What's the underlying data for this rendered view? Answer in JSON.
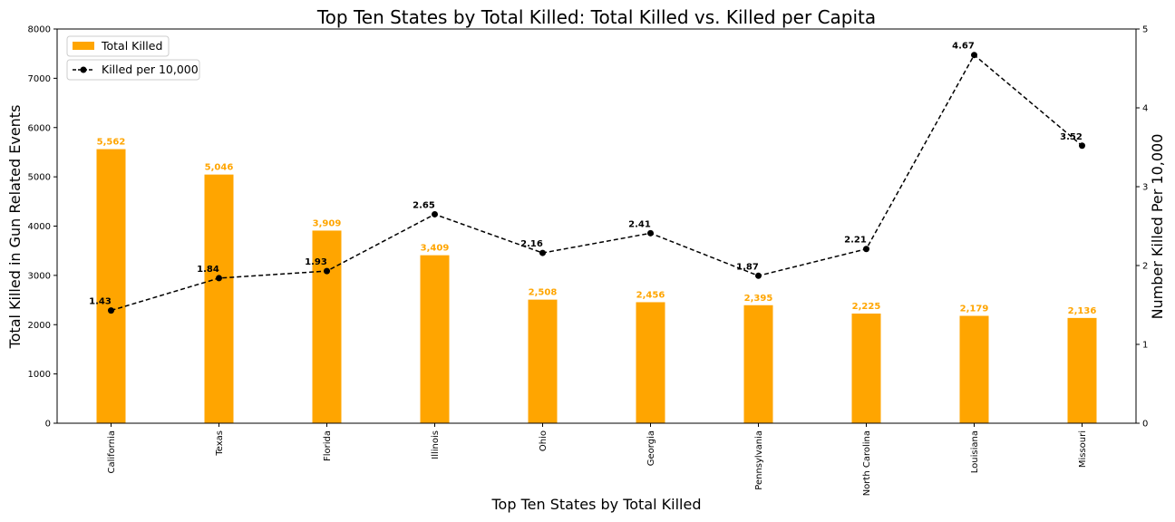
{
  "chart_data": {
    "type": "bar",
    "title": "Top Ten States by Total Killed: Total Killed vs. Killed per Capita",
    "xlabel": "Top Ten States by Total Killed",
    "ylabel": "Total Killed in Gun Related Events",
    "y2label": "Number Killed Per 10,000",
    "categories": [
      "California",
      "Texas",
      "Florida",
      "Illinois",
      "Ohio",
      "Georgia",
      "Pennsylvania",
      "North Carolina",
      "Louisiana",
      "Missouri"
    ],
    "series": [
      {
        "name": "Total Killed",
        "type": "bar",
        "axis": "left",
        "values": [
          5562,
          5046,
          3909,
          3409,
          2508,
          2456,
          2395,
          2225,
          2179,
          2136
        ],
        "labels": [
          "5,562",
          "5,046",
          "3,909",
          "3,409",
          "2,508",
          "2,456",
          "2,395",
          "2,225",
          "2,179",
          "2,136"
        ],
        "color": "#ffa500"
      },
      {
        "name": "Killed per 10,000",
        "type": "line",
        "axis": "right",
        "values": [
          1.43,
          1.84,
          1.93,
          2.65,
          2.16,
          2.41,
          1.87,
          2.21,
          4.67,
          3.52
        ],
        "labels": [
          "1.43",
          "1.84",
          "1.93",
          "2.65",
          "2.16",
          "2.41",
          "1.87",
          "2.21",
          "4.67",
          "3.52"
        ],
        "color": "#000000",
        "linestyle": "dashed",
        "marker": "circle"
      }
    ],
    "ylim": [
      0,
      8000
    ],
    "y_ticks": [
      "0",
      "1000",
      "2000",
      "3000",
      "4000",
      "5000",
      "6000",
      "7000",
      "8000"
    ],
    "y2lim": [
      0,
      5
    ],
    "y2_ticks": [
      "0",
      "1",
      "2",
      "3",
      "4",
      "5"
    ],
    "grid": false,
    "legend_position": "top-left"
  }
}
